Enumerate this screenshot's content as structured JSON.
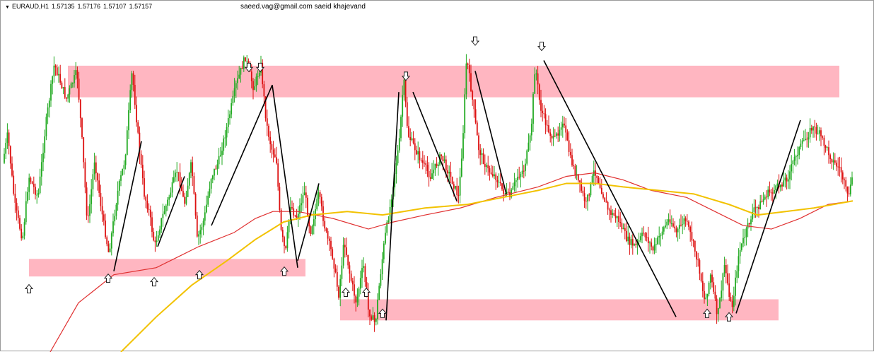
{
  "header": {
    "menu_glyph": "▼",
    "symbol": "EURAUD,H1",
    "ohlc": [
      "1.57135",
      "1.57176",
      "1.57107",
      "1.57157"
    ]
  },
  "watermark": "saeed.vag@gmail.com saeid khajevand",
  "colors": {
    "bull_candle": "#22aa22",
    "bear_candle": "#dd1111",
    "zone_fill": "#ffb6c1",
    "ma_fast": "#e03030",
    "ma_slow": "#f2c200",
    "trendline": "#000000",
    "arrow_stroke": "#222222"
  },
  "chart_data": {
    "type": "candlestick",
    "instrument": "EURAUD",
    "timeframe": "H1",
    "last_bar": {
      "open": 1.57135,
      "high": 1.57176,
      "low": 1.57107,
      "close": 1.57157
    },
    "price_path": [
      [
        0,
        0.52
      ],
      [
        12,
        0.38
      ],
      [
        22,
        0.58
      ],
      [
        33,
        0.68
      ],
      [
        42,
        0.5
      ],
      [
        55,
        0.56
      ],
      [
        66,
        0.35
      ],
      [
        78,
        0.18
      ],
      [
        95,
        0.28
      ],
      [
        110,
        0.2
      ],
      [
        118,
        0.42
      ],
      [
        125,
        0.64
      ],
      [
        135,
        0.45
      ],
      [
        145,
        0.6
      ],
      [
        155,
        0.72
      ],
      [
        168,
        0.54
      ],
      [
        178,
        0.45
      ],
      [
        188,
        0.2
      ],
      [
        198,
        0.42
      ],
      [
        205,
        0.55
      ],
      [
        212,
        0.6
      ],
      [
        220,
        0.7
      ],
      [
        230,
        0.62
      ],
      [
        240,
        0.56
      ],
      [
        252,
        0.48
      ],
      [
        262,
        0.58
      ],
      [
        272,
        0.46
      ],
      [
        280,
        0.68
      ],
      [
        290,
        0.62
      ],
      [
        300,
        0.5
      ],
      [
        310,
        0.46
      ],
      [
        322,
        0.36
      ],
      [
        335,
        0.24
      ],
      [
        348,
        0.16
      ],
      [
        360,
        0.25
      ],
      [
        370,
        0.18
      ],
      [
        378,
        0.35
      ],
      [
        385,
        0.42
      ],
      [
        392,
        0.45
      ],
      [
        398,
        0.65
      ],
      [
        405,
        0.72
      ],
      [
        412,
        0.58
      ],
      [
        420,
        0.62
      ],
      [
        432,
        0.54
      ],
      [
        440,
        0.66
      ],
      [
        452,
        0.55
      ],
      [
        462,
        0.66
      ],
      [
        472,
        0.73
      ],
      [
        480,
        0.84
      ],
      [
        488,
        0.68
      ],
      [
        496,
        0.78
      ],
      [
        505,
        0.86
      ],
      [
        515,
        0.75
      ],
      [
        522,
        0.88
      ],
      [
        532,
        0.92
      ],
      [
        538,
        0.8
      ],
      [
        545,
        0.68
      ],
      [
        552,
        0.6
      ],
      [
        560,
        0.48
      ],
      [
        566,
        0.4
      ],
      [
        572,
        0.22
      ],
      [
        578,
        0.38
      ],
      [
        588,
        0.42
      ],
      [
        598,
        0.46
      ],
      [
        610,
        0.5
      ],
      [
        625,
        0.44
      ],
      [
        638,
        0.5
      ],
      [
        650,
        0.56
      ],
      [
        656,
        0.38
      ],
      [
        661,
        0.16
      ],
      [
        668,
        0.26
      ],
      [
        678,
        0.42
      ],
      [
        690,
        0.48
      ],
      [
        702,
        0.5
      ],
      [
        712,
        0.54
      ],
      [
        722,
        0.56
      ],
      [
        733,
        0.5
      ],
      [
        742,
        0.48
      ],
      [
        752,
        0.38
      ],
      [
        758,
        0.18
      ],
      [
        765,
        0.3
      ],
      [
        775,
        0.36
      ],
      [
        785,
        0.4
      ],
      [
        797,
        0.34
      ],
      [
        808,
        0.45
      ],
      [
        820,
        0.52
      ],
      [
        830,
        0.58
      ],
      [
        842,
        0.48
      ],
      [
        852,
        0.54
      ],
      [
        862,
        0.6
      ],
      [
        875,
        0.62
      ],
      [
        888,
        0.68
      ],
      [
        900,
        0.7
      ],
      [
        912,
        0.66
      ],
      [
        925,
        0.71
      ],
      [
        936,
        0.66
      ],
      [
        948,
        0.62
      ],
      [
        958,
        0.66
      ],
      [
        970,
        0.62
      ],
      [
        980,
        0.68
      ],
      [
        990,
        0.76
      ],
      [
        998,
        0.86
      ],
      [
        1006,
        0.78
      ],
      [
        1016,
        0.9
      ],
      [
        1026,
        0.75
      ],
      [
        1036,
        0.88
      ],
      [
        1046,
        0.72
      ],
      [
        1056,
        0.66
      ],
      [
        1066,
        0.6
      ],
      [
        1076,
        0.58
      ],
      [
        1086,
        0.55
      ],
      [
        1096,
        0.54
      ],
      [
        1106,
        0.52
      ],
      [
        1116,
        0.5
      ],
      [
        1126,
        0.44
      ],
      [
        1138,
        0.4
      ],
      [
        1150,
        0.36
      ],
      [
        1160,
        0.38
      ],
      [
        1170,
        0.42
      ],
      [
        1180,
        0.46
      ],
      [
        1190,
        0.48
      ],
      [
        1200,
        0.56
      ],
      [
        1208,
        0.5
      ]
    ],
    "zones": [
      {
        "role": "resistance",
        "x_from": 95,
        "x_to": 1186,
        "level_top": 0.185,
        "level_bottom": 0.275
      },
      {
        "role": "support",
        "x_from": 40,
        "x_to": 431,
        "level_top": 0.735,
        "level_bottom": 0.785
      },
      {
        "role": "support",
        "x_from": 480,
        "x_to": 1100,
        "level_top": 0.85,
        "level_bottom": 0.91
      }
    ],
    "moving_averages": [
      {
        "role": "fast",
        "path": [
          [
            70,
            1.0
          ],
          [
            110,
            0.86
          ],
          [
            160,
            0.78
          ],
          [
            220,
            0.76
          ],
          [
            280,
            0.7
          ],
          [
            330,
            0.66
          ],
          [
            360,
            0.62
          ],
          [
            385,
            0.6
          ],
          [
            420,
            0.6
          ],
          [
            470,
            0.62
          ],
          [
            520,
            0.65
          ],
          [
            555,
            0.63
          ],
          [
            600,
            0.61
          ],
          [
            650,
            0.59
          ],
          [
            700,
            0.56
          ],
          [
            760,
            0.53
          ],
          [
            800,
            0.5
          ],
          [
            840,
            0.49
          ],
          [
            880,
            0.51
          ],
          [
            920,
            0.54
          ],
          [
            970,
            0.56
          ],
          [
            1010,
            0.6
          ],
          [
            1050,
            0.64
          ],
          [
            1090,
            0.65
          ],
          [
            1130,
            0.62
          ],
          [
            1170,
            0.58
          ],
          [
            1205,
            0.57
          ]
        ]
      },
      {
        "role": "slow",
        "path": [
          [
            170,
            1.0
          ],
          [
            220,
            0.9
          ],
          [
            270,
            0.81
          ],
          [
            320,
            0.74
          ],
          [
            360,
            0.68
          ],
          [
            400,
            0.63
          ],
          [
            440,
            0.61
          ],
          [
            490,
            0.6
          ],
          [
            540,
            0.61
          ],
          [
            600,
            0.59
          ],
          [
            660,
            0.58
          ],
          [
            710,
            0.56
          ],
          [
            760,
            0.54
          ],
          [
            800,
            0.52
          ],
          [
            840,
            0.52
          ],
          [
            880,
            0.53
          ],
          [
            930,
            0.54
          ],
          [
            980,
            0.55
          ],
          [
            1030,
            0.58
          ],
          [
            1070,
            0.61
          ],
          [
            1110,
            0.6
          ],
          [
            1150,
            0.59
          ],
          [
            1205,
            0.57
          ]
        ]
      }
    ],
    "trendlines": [
      [
        [
          160,
          0.77
        ],
        [
          199,
          0.4
        ]
      ],
      [
        [
          222,
          0.7
        ],
        [
          260,
          0.5
        ]
      ],
      [
        [
          298,
          0.64
        ],
        [
          384,
          0.24
        ]
      ],
      [
        [
          384,
          0.24
        ],
        [
          420,
          0.76
        ]
      ],
      [
        [
          420,
          0.74
        ],
        [
          450,
          0.52
        ]
      ],
      [
        [
          545,
          0.91
        ],
        [
          563,
          0.26
        ]
      ],
      [
        [
          583,
          0.26
        ],
        [
          645,
          0.57
        ]
      ],
      [
        [
          671,
          0.2
        ],
        [
          715,
          0.55
        ]
      ],
      [
        [
          768,
          0.17
        ],
        [
          955,
          0.9
        ]
      ],
      [
        [
          1040,
          0.89
        ],
        [
          1131,
          0.34
        ]
      ]
    ],
    "markers": {
      "down": [
        [
          351,
          0.19
        ],
        [
          367,
          0.19
        ],
        [
          573,
          0.215
        ],
        [
          671,
          0.115
        ],
        [
          765,
          0.13
        ]
      ],
      "up": [
        [
          40,
          0.82
        ],
        [
          152,
          0.79
        ],
        [
          217,
          0.8
        ],
        [
          281,
          0.78
        ],
        [
          401,
          0.77
        ],
        [
          488,
          0.83
        ],
        [
          517,
          0.83
        ],
        [
          540,
          0.89
        ],
        [
          999,
          0.89
        ],
        [
          1030,
          0.9
        ]
      ]
    }
  }
}
